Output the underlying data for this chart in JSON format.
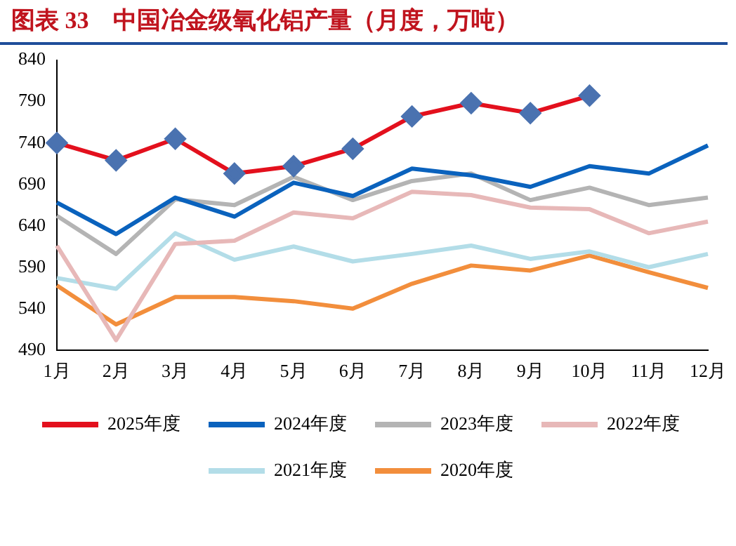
{
  "chart_data": {
    "type": "line",
    "title": "图表 33　中国冶金级氧化铝产量（月度，万吨）",
    "categories": [
      "1月",
      "2月",
      "3月",
      "4月",
      "5月",
      "6月",
      "7月",
      "8月",
      "9月",
      "10月",
      "11月",
      "12月"
    ],
    "series": [
      {
        "name": "2025年度",
        "color": "#e3101d",
        "marker": "diamond",
        "values": [
          740,
          719,
          745,
          703,
          712,
          733,
          772,
          788,
          776,
          797,
          null,
          null
        ]
      },
      {
        "name": "2024年度",
        "color": "#0a62bd",
        "values": [
          668,
          630,
          674,
          651,
          692,
          676,
          709,
          701,
          687,
          712,
          703,
          737
        ]
      },
      {
        "name": "2023年度",
        "color": "#b4b4b4",
        "values": [
          652,
          606,
          672,
          665,
          699,
          671,
          694,
          703,
          671,
          686,
          665,
          674
        ]
      },
      {
        "name": "2022年度",
        "color": "#e7b8b8",
        "values": [
          616,
          502,
          618,
          622,
          656,
          649,
          681,
          677,
          662,
          660,
          631,
          645
        ]
      },
      {
        "name": "2021年度",
        "color": "#b3dde8",
        "values": [
          577,
          564,
          631,
          599,
          615,
          597,
          606,
          616,
          600,
          609,
          590,
          606
        ]
      },
      {
        "name": "2020年度",
        "color": "#f28e3c",
        "values": [
          568,
          521,
          554,
          554,
          549,
          540,
          570,
          592,
          586,
          604,
          584,
          565
        ]
      }
    ],
    "ylim": [
      490,
      840
    ],
    "yticks": [
      490,
      540,
      590,
      640,
      690,
      740,
      790,
      840
    ],
    "grid": false,
    "legend": "bottom",
    "marker": "none"
  }
}
